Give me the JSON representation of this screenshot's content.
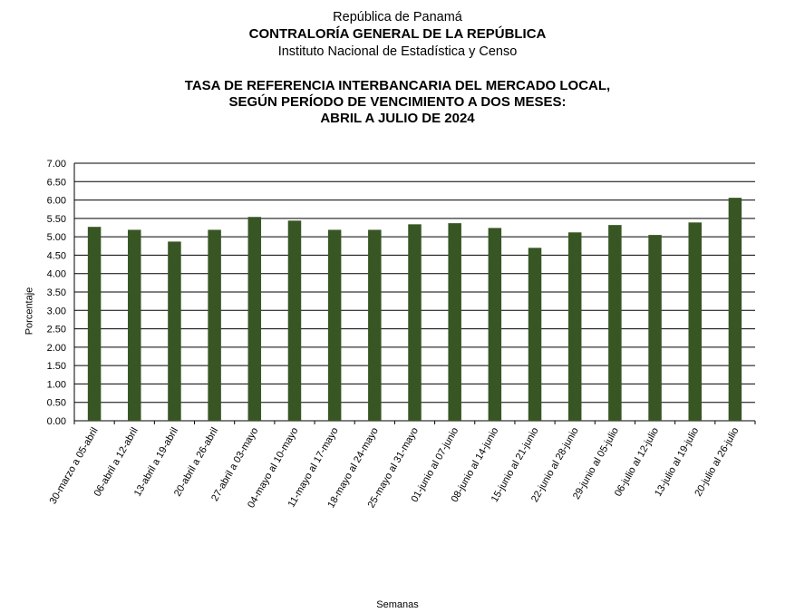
{
  "header": {
    "line1": "República de Panamá",
    "line2": "CONTRALORÍA GENERAL DE LA REPÚBLICA",
    "line3": "Instituto  Nacional de Estadística  y  Censo"
  },
  "chart_data": {
    "type": "bar",
    "title_lines": [
      "TASA DE REFERENCIA INTERBANCARIA DEL MERCADO LOCAL,",
      "SEGÚN PERÍODO DE VENCIMIENTO A DOS MESES:",
      "ABRIL A JULIO DE 2024"
    ],
    "xlabel": "Semanas",
    "ylabel": "Porcentaje",
    "ylim": [
      0,
      7
    ],
    "yticks": [
      "0.00",
      "0.50",
      "1.00",
      "1.50",
      "2.00",
      "2.50",
      "3.00",
      "3.50",
      "4.00",
      "4.50",
      "5.00",
      "5.50",
      "6.00",
      "6.50",
      "7.00"
    ],
    "grid": true,
    "bar_color": "#375623",
    "categories": [
      "30-marzo a 05-abril",
      "06-abril a 12-abril",
      "13-abril a 19-abril",
      "20-abril a 26-abril",
      "27-abril a 03-mayo",
      "04-mayo al 10-mayo",
      "11-mayo al 17-mayo",
      "18-mayo al 24-mayo",
      "25-mayo al 31-mayo",
      "01-junio al 07-junio",
      "08-junio al 14-junio",
      "15-junio al 21-junio",
      "22-junio al 28-junio",
      "29-junio al 05-julio",
      "06-julio al 12-julio",
      "13-julio al 19-julio",
      "20-julio al 26-julio"
    ],
    "values": [
      5.27,
      5.19,
      4.87,
      5.19,
      5.54,
      5.44,
      5.19,
      5.19,
      5.34,
      5.37,
      5.24,
      4.7,
      5.12,
      5.32,
      5.05,
      5.39,
      6.06
    ]
  }
}
